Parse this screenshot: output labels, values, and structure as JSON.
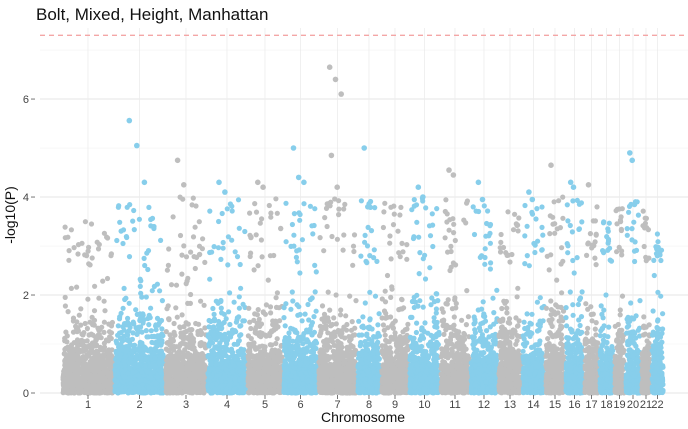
{
  "chart_data": {
    "type": "scatter",
    "subtype": "manhattan",
    "title": "Bolt, Mixed, Height, Manhattan",
    "xlabel": "Chromosome",
    "ylabel": "-log10(P)",
    "ylim": [
      0,
      7.45
    ],
    "y_ticks": [
      0,
      2,
      4,
      6
    ],
    "grid": true,
    "significance_line": {
      "value": 7.3,
      "color": "#f4a6a6",
      "style": "dashed"
    },
    "colors": {
      "odd": "#bebebe",
      "even": "#87ceeb"
    },
    "chromosomes": [
      {
        "label": "1",
        "max": 3.5
      },
      {
        "label": "2",
        "max": 5.6,
        "top_points": [
          5.56,
          5.05,
          4.3
        ]
      },
      {
        "label": "3",
        "max": 4.75,
        "top_points": [
          4.75,
          4.25
        ]
      },
      {
        "label": "4",
        "max": 4.3,
        "top_points": [
          4.3,
          4.1
        ]
      },
      {
        "label": "5",
        "max": 4.3,
        "top_points": [
          4.3,
          4.2
        ]
      },
      {
        "label": "6",
        "max": 5.0,
        "top_points": [
          5.0,
          4.4,
          4.3
        ]
      },
      {
        "label": "7",
        "max": 6.65,
        "top_points": [
          6.65,
          6.4,
          6.1,
          4.85,
          4.2
        ]
      },
      {
        "label": "8",
        "max": 5.0,
        "top_points": [
          5.0,
          3.8
        ]
      },
      {
        "label": "9",
        "max": 3.9
      },
      {
        "label": "10",
        "max": 4.2,
        "top_points": [
          4.2,
          4.0
        ]
      },
      {
        "label": "11",
        "max": 4.55,
        "top_points": [
          4.55,
          4.45
        ]
      },
      {
        "label": "12",
        "max": 4.3,
        "top_points": [
          4.3,
          3.95
        ]
      },
      {
        "label": "13",
        "max": 3.9
      },
      {
        "label": "14",
        "max": 4.1,
        "top_points": [
          4.1,
          3.95
        ]
      },
      {
        "label": "15",
        "max": 4.65,
        "top_points": [
          4.65
        ]
      },
      {
        "label": "16",
        "max": 4.3,
        "top_points": [
          4.3,
          4.2
        ]
      },
      {
        "label": "17",
        "max": 4.25,
        "top_points": [
          4.25
        ]
      },
      {
        "label": "18",
        "max": 3.5
      },
      {
        "label": "19",
        "max": 3.8
      },
      {
        "label": "20",
        "max": 4.9,
        "top_points": [
          4.9,
          4.75,
          3.85
        ]
      },
      {
        "label": "21",
        "max": 3.75
      },
      {
        "label": "22",
        "max": 3.3
      }
    ]
  }
}
